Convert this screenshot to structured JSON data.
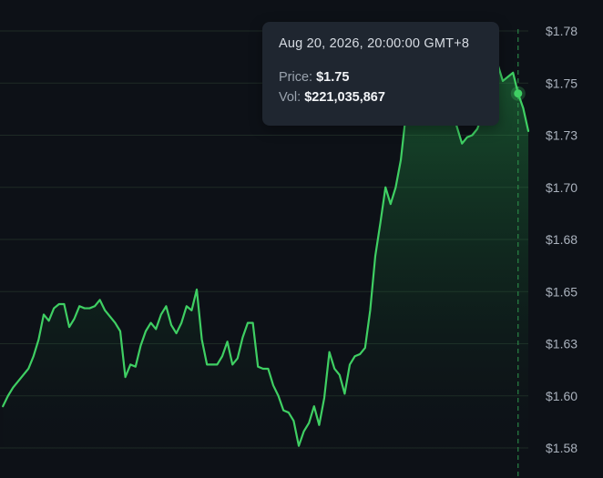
{
  "colors": {
    "background": "#0d1117",
    "line": "#3fcf63",
    "grid": "#1e2a26",
    "crosshair": "#2f9a4f",
    "tick_text": "#aab2bd"
  },
  "tooltip": {
    "date": "Aug 20, 2026, 20:00:00 GMT+8",
    "price_label": "Price:",
    "price_value": "$1.75",
    "vol_label": "Vol:",
    "vol_value": "$221,035,867"
  },
  "chart_data": {
    "type": "area",
    "y_tick_labels": [
      "$1.78",
      "$1.75",
      "$1.73",
      "$1.70",
      "$1.68",
      "$1.65",
      "$1.63",
      "$1.60",
      "$1.58"
    ],
    "y_ticks": [
      1.78,
      1.755,
      1.73,
      1.705,
      1.68,
      1.655,
      1.63,
      1.605,
      1.58
    ],
    "ylim": [
      1.575,
      1.785
    ],
    "grid": true,
    "highlighted_index": 101,
    "highlighted_value": 1.75,
    "values": [
      1.6,
      1.605,
      1.609,
      1.612,
      1.615,
      1.618,
      1.624,
      1.632,
      1.644,
      1.641,
      1.647,
      1.649,
      1.649,
      1.638,
      1.642,
      1.648,
      1.647,
      1.647,
      1.648,
      1.651,
      1.646,
      1.643,
      1.64,
      1.636,
      1.614,
      1.62,
      1.619,
      1.629,
      1.636,
      1.64,
      1.637,
      1.644,
      1.648,
      1.639,
      1.635,
      1.64,
      1.648,
      1.646,
      1.656,
      1.632,
      1.62,
      1.62,
      1.62,
      1.624,
      1.631,
      1.62,
      1.623,
      1.633,
      1.64,
      1.64,
      1.619,
      1.618,
      1.618,
      1.61,
      1.605,
      1.598,
      1.597,
      1.593,
      1.581,
      1.588,
      1.592,
      1.6,
      1.591,
      1.604,
      1.626,
      1.618,
      1.615,
      1.606,
      1.62,
      1.624,
      1.625,
      1.628,
      1.646,
      1.672,
      1.688,
      1.705,
      1.697,
      1.705,
      1.718,
      1.74,
      1.752,
      1.762,
      1.768,
      1.765,
      1.758,
      1.756,
      1.76,
      1.754,
      1.744,
      1.734,
      1.726,
      1.729,
      1.73,
      1.733,
      1.74,
      1.75,
      1.761,
      1.764,
      1.756,
      1.758,
      1.76,
      1.75,
      1.743,
      1.732
    ]
  }
}
